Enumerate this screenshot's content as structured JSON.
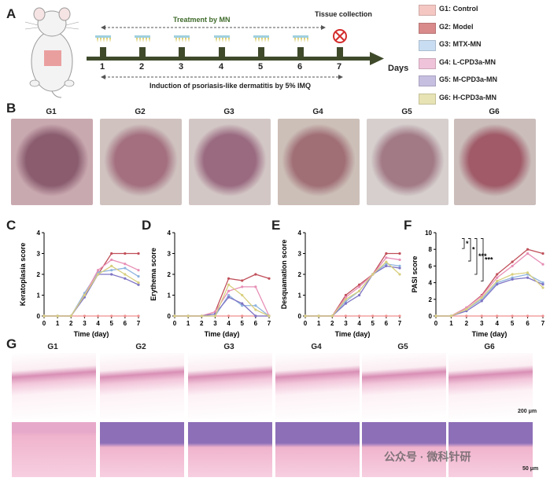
{
  "panels": {
    "A": "A",
    "B": "B",
    "C": "C",
    "D": "D",
    "E": "E",
    "F": "F",
    "G": "G"
  },
  "timeline": {
    "treatment_label": "Treatment by MN",
    "tissue_label": "Tissue collection",
    "days_label": "Days",
    "induction_label": "Induction of psoriasis-like dermatitis by 5% IMQ",
    "days": [
      "1",
      "2",
      "3",
      "4",
      "5",
      "6",
      "7"
    ]
  },
  "legend": [
    {
      "label": "G1: Control",
      "color": "#f4c7c3"
    },
    {
      "label": "G2: Model",
      "color": "#d98a8a"
    },
    {
      "label": "G3: MTX-MN",
      "color": "#c9ddf2"
    },
    {
      "label": "G4: L-CPD3a-MN",
      "color": "#efc3d9"
    },
    {
      "label": "G5: M-CPD3a-MN",
      "color": "#c7bfe0"
    },
    {
      "label": "G6: H-CPD3a-MN",
      "color": "#e7e3b4"
    }
  ],
  "group_labels": [
    "G1",
    "G2",
    "G3",
    "G4",
    "G5",
    "G6"
  ],
  "series_colors": [
    "#f08f8f",
    "#c0505a",
    "#8fb4e0",
    "#e78fb6",
    "#7e74c4",
    "#d8cf7e"
  ],
  "series_names": [
    "G1",
    "G2",
    "G3",
    "G4",
    "G5",
    "G6"
  ],
  "scale_bars": {
    "top": "200 μm",
    "bottom": "50 μm"
  },
  "watermark": "公众号 · 微科针研",
  "chart_data": [
    {
      "type": "line",
      "panel": "C",
      "ylabel": "Keratoplasia score",
      "xlabel": "Time (day)",
      "x": [
        0,
        1,
        2,
        3,
        4,
        5,
        6,
        7
      ],
      "xlim": [
        0,
        7
      ],
      "ylim": [
        0,
        4
      ],
      "yticks": [
        0,
        1,
        2,
        3,
        4
      ],
      "series": [
        {
          "values": [
            0,
            0,
            0,
            0,
            0,
            0,
            0,
            0
          ]
        },
        {
          "values": [
            0,
            0,
            0,
            1,
            2,
            3,
            3,
            3
          ]
        },
        {
          "values": [
            0,
            0,
            0,
            1.1,
            2.1,
            2.2,
            2.3,
            1.9
          ]
        },
        {
          "values": [
            0,
            0,
            0,
            1,
            2.2,
            2.7,
            2.5,
            2.2
          ]
        },
        {
          "values": [
            0,
            0,
            0,
            0.9,
            2,
            2,
            1.8,
            1.5
          ]
        },
        {
          "values": [
            0,
            0,
            0,
            1,
            2,
            2.4,
            2,
            1.6
          ]
        }
      ]
    },
    {
      "type": "line",
      "panel": "D",
      "ylabel": "Erythema score",
      "xlabel": "Time (day)",
      "x": [
        0,
        1,
        2,
        3,
        4,
        5,
        6,
        7
      ],
      "xlim": [
        0,
        7
      ],
      "ylim": [
        0,
        4
      ],
      "yticks": [
        0,
        1,
        2,
        3,
        4
      ],
      "series": [
        {
          "values": [
            0,
            0,
            0,
            0,
            0,
            0,
            0,
            0
          ]
        },
        {
          "values": [
            0,
            0,
            0,
            0.2,
            1.8,
            1.7,
            2,
            1.8
          ]
        },
        {
          "values": [
            0,
            0,
            0,
            0,
            1,
            0.5,
            0.5,
            0
          ]
        },
        {
          "values": [
            0,
            0,
            0,
            0.2,
            1.2,
            1.4,
            1.4,
            0
          ]
        },
        {
          "values": [
            0,
            0,
            0,
            0.1,
            0.9,
            0.6,
            0,
            0
          ]
        },
        {
          "values": [
            0,
            0,
            0,
            0,
            1.5,
            1,
            0.3,
            0
          ]
        }
      ]
    },
    {
      "type": "line",
      "panel": "E",
      "ylabel": "Desquamation score",
      "xlabel": "Time (day)",
      "x": [
        0,
        1,
        2,
        3,
        4,
        5,
        6,
        7
      ],
      "xlim": [
        0,
        7
      ],
      "ylim": [
        0,
        4
      ],
      "yticks": [
        0,
        1,
        2,
        3,
        4
      ],
      "series": [
        {
          "values": [
            0,
            0,
            0,
            0,
            0,
            0,
            0,
            0
          ]
        },
        {
          "values": [
            0,
            0,
            0,
            1,
            1.5,
            2,
            3,
            3
          ]
        },
        {
          "values": [
            0,
            0,
            0,
            0.7,
            1.2,
            2,
            2.5,
            2.4
          ]
        },
        {
          "values": [
            0,
            0,
            0,
            0.9,
            1.4,
            2,
            2.8,
            2.7
          ]
        },
        {
          "values": [
            0,
            0,
            0,
            0.6,
            1,
            2,
            2.4,
            2.3
          ]
        },
        {
          "values": [
            0,
            0,
            0,
            0.8,
            1.2,
            2,
            2.6,
            2
          ]
        }
      ]
    },
    {
      "type": "line",
      "panel": "F",
      "ylabel": "PASI score",
      "xlabel": "Time (day)",
      "x": [
        0,
        1,
        2,
        3,
        4,
        5,
        6,
        7
      ],
      "xlim": [
        0,
        7
      ],
      "ylim": [
        0,
        10
      ],
      "yticks": [
        0,
        2,
        4,
        6,
        8,
        10
      ],
      "significance": [
        "*",
        "*",
        "***",
        "***"
      ],
      "series": [
        {
          "values": [
            0,
            0,
            0,
            0,
            0,
            0,
            0,
            0
          ]
        },
        {
          "values": [
            0,
            0,
            1,
            2.5,
            5,
            6.5,
            8,
            7.5
          ]
        },
        {
          "values": [
            0,
            0,
            0.8,
            2,
            4,
            4.6,
            5,
            4
          ]
        },
        {
          "values": [
            0,
            0,
            1,
            2.4,
            4.6,
            6,
            7.5,
            6.2
          ]
        },
        {
          "values": [
            0,
            0,
            0.6,
            1.8,
            3.8,
            4.4,
            4.6,
            3.8
          ]
        },
        {
          "values": [
            0,
            0,
            0.8,
            2.2,
            4.2,
            5,
            5.2,
            3.4
          ]
        }
      ]
    }
  ]
}
